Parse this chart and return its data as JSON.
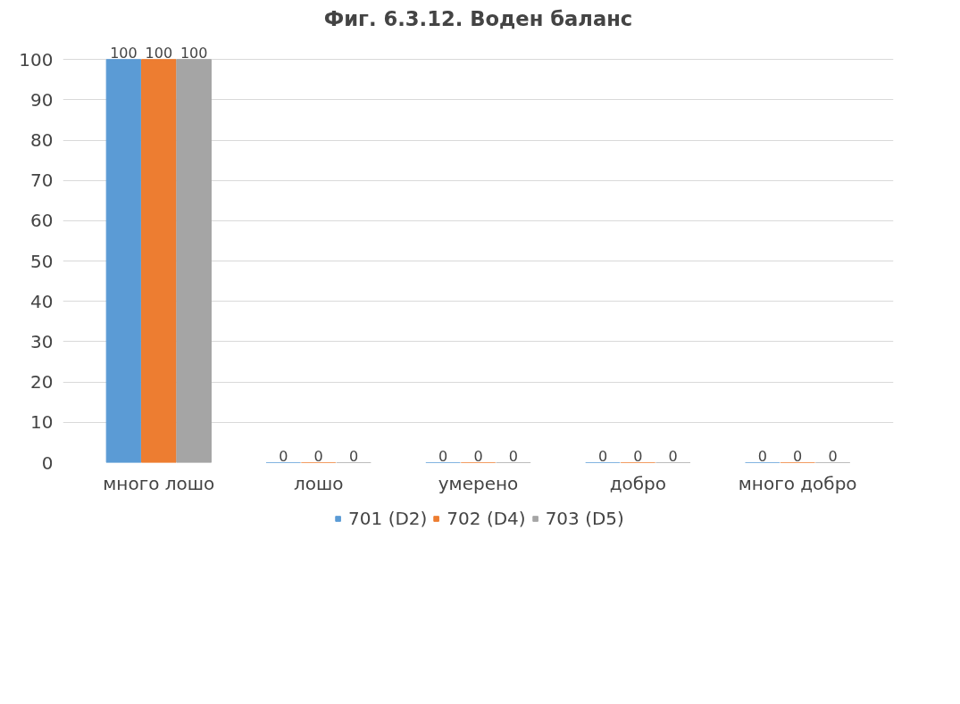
{
  "chart_data": {
    "type": "bar",
    "title": "Фиг. 6.3.12. Воден баланс",
    "categories": [
      "много лошо",
      "лошо",
      "умерено",
      "добро",
      "много добро"
    ],
    "series": [
      {
        "name": "701 (D2)",
        "color": "#5b9bd5",
        "values": [
          100,
          0,
          0,
          0,
          0
        ]
      },
      {
        "name": "702 (D4)",
        "color": "#ed7d31",
        "values": [
          100,
          0,
          0,
          0,
          0
        ]
      },
      {
        "name": "703 (D5)",
        "color": "#a5a5a5",
        "values": [
          100,
          0,
          0,
          0,
          0
        ]
      }
    ],
    "ylim": [
      0,
      100
    ],
    "yticks": [
      0,
      10,
      20,
      30,
      40,
      50,
      60,
      70,
      80,
      90,
      100
    ],
    "grid": "y",
    "legend": "bottom",
    "data_labels": true
  }
}
